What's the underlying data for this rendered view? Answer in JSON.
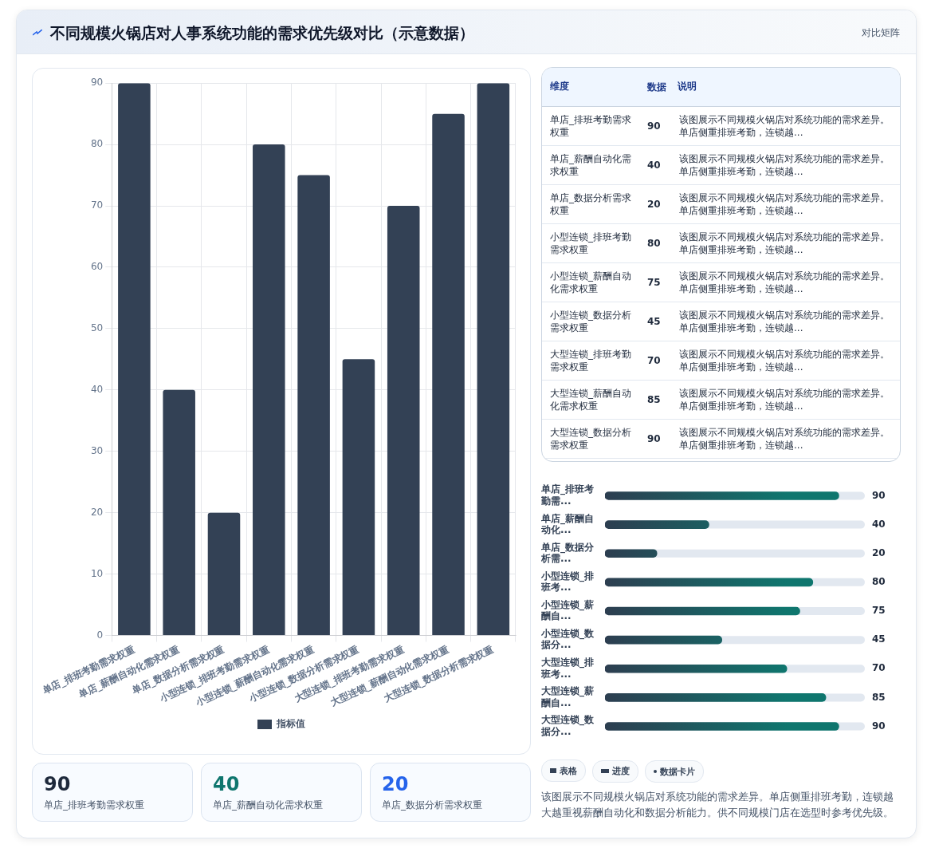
{
  "chart_data": [
    {
      "type": "bar",
      "title": "不同规模火锅店对人事系统功能的需求优先级对比（示意数据）",
      "annotations": [
        "对比矩阵"
      ],
      "categories": [
        "单店_排班考勤需求权重",
        "单店_薪酬自动化需求权重",
        "单店_数据分析需求权重",
        "小型连锁_排班考勤需求权重",
        "小型连锁_薪酬自动化需求权重",
        "小型连锁_数据分析需求权重",
        "大型连锁_排班考勤需求权重",
        "大型连锁_薪酬自动化需求权重",
        "大型连锁_数据分析需求权重"
      ],
      "series": [
        {
          "name": "指标值",
          "color": "#334155",
          "values": [
            90,
            40,
            20,
            80,
            75,
            45,
            70,
            85,
            90
          ]
        }
      ],
      "ylim": [
        0,
        90
      ],
      "yticks": [
        0,
        10,
        20,
        30,
        40,
        50,
        60,
        70,
        80,
        90
      ],
      "grid": true,
      "legend": "bottom"
    },
    {
      "type": "other",
      "annotations": [
        "维度",
        "数据",
        "说明",
        "该图展示不同规模火锅店对系统功能的需求差异。单店侧重排班考勤，连锁越..."
      ],
      "categories": [
        "单店_排班考勤需求权重",
        "单店_薪酬自动化需求权重",
        "单店_数据分析需求权重",
        "小型连锁_排班考勤需求权重",
        "小型连锁_薪酬自动化需求权重",
        "小型连锁_数据分析需求权重",
        "大型连锁_排班考勤需求权重",
        "大型连锁_薪酬自动化需求权重",
        "大型连锁_数据分析需求权重"
      ],
      "values": [
        90,
        40,
        20,
        80,
        75,
        45,
        70,
        85,
        90
      ],
      "data_labels": true
    },
    {
      "type": "bar",
      "orientation": "horizontal",
      "annotations": [
        "表格",
        "进度",
        "数据卡片",
        "该图展示不同规模火锅店对系统功能的需求差异。单店侧重排班考勤，连锁越大越重视薪酬自动化和数据分析能力。供不同规模门店在选型时参考优先级。"
      ],
      "categories": [
        "单店_排班考勤需...",
        "单店_薪酬自动化...",
        "单店_数据分析需...",
        "小型连锁_排班考...",
        "小型连锁_薪酬自...",
        "小型连锁_数据分...",
        "大型连锁_排班考...",
        "大型连锁_薪酬自...",
        "大型连锁_数据分..."
      ],
      "values": [
        90,
        40,
        20,
        80,
        75,
        45,
        70,
        85,
        90
      ],
      "color": "#0f766e",
      "xlim": [
        0,
        100
      ],
      "data_labels": true,
      "tick_labels": "y"
    },
    {
      "type": "other",
      "categories": [
        "单店_排班考勤需求权重",
        "单店_薪酬自动化需求权重",
        "单店_数据分析需求权重"
      ],
      "values": [
        90,
        40,
        20
      ],
      "data_labels": true
    }
  ]
}
